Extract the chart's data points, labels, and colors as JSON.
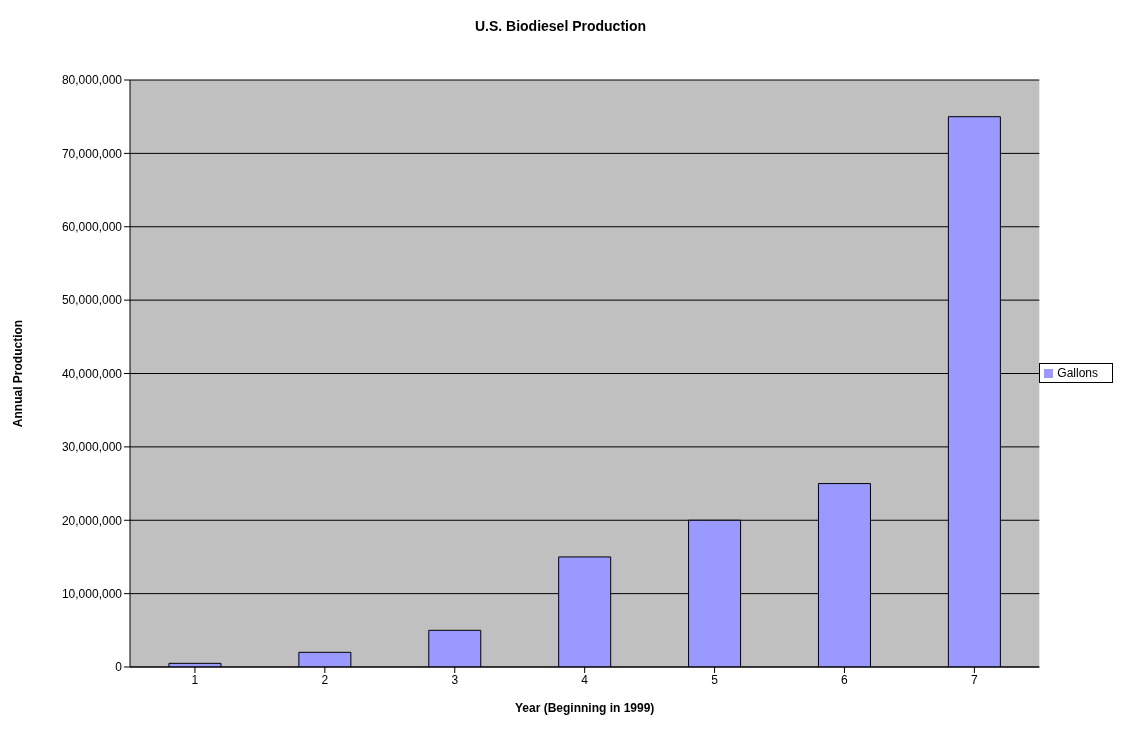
{
  "chart_data": {
    "type": "bar",
    "title": "U.S. Biodiesel Production",
    "xlabel": "Year (Beginning in 1999)",
    "ylabel": "Annual Production",
    "categories": [
      "1",
      "2",
      "3",
      "4",
      "5",
      "6",
      "7"
    ],
    "series": [
      {
        "name": "Gallons",
        "color": "#9999ff",
        "values": [
          500000,
          2000000,
          5000000,
          15000000,
          20000000,
          25000000,
          75000000
        ]
      }
    ],
    "ylim": [
      0,
      80000000
    ],
    "yticks": [
      0,
      {
        "value": 10000000,
        "label": "10,000,000"
      },
      {
        "value": 20000000,
        "label": "20,000,000"
      },
      {
        "value": 30000000,
        "label": "30,000,000"
      },
      {
        "value": 40000000,
        "label": "40,000,000"
      },
      {
        "value": 50000000,
        "label": "50,000,000"
      },
      {
        "value": 60000000,
        "label": "60,000,000"
      },
      {
        "value": 70000000,
        "label": "70,000,000"
      },
      {
        "value": 80000000,
        "label": "80,000,000"
      }
    ],
    "grid": "y",
    "legend": "right"
  }
}
